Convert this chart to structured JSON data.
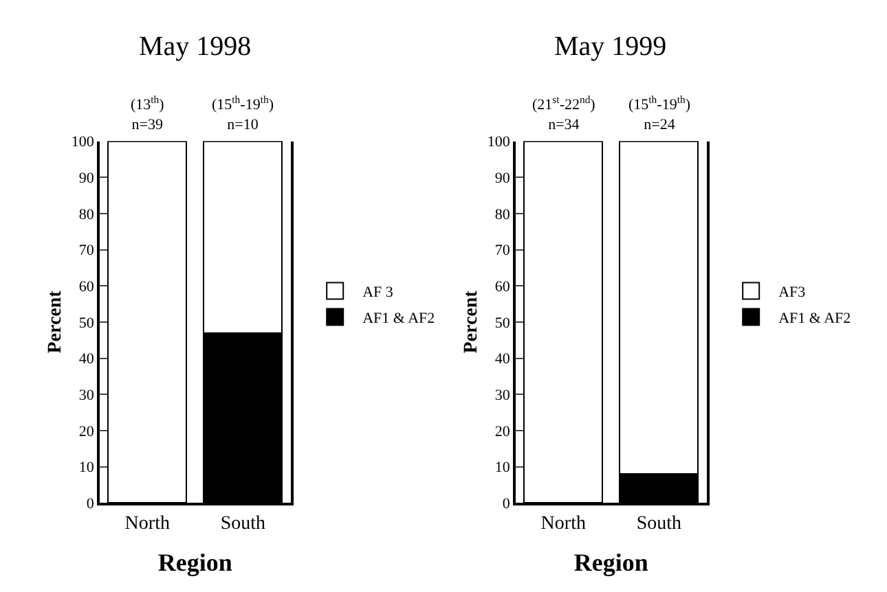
{
  "chart_data": [
    {
      "type": "bar",
      "title": "May 1998",
      "xlabel": "Region",
      "ylabel": "Percent",
      "categories": [
        "North",
        "South"
      ],
      "stacked": true,
      "ylim": [
        0,
        100
      ],
      "yticks": [
        0,
        10,
        20,
        30,
        40,
        50,
        60,
        70,
        80,
        90,
        100
      ],
      "legend": "right",
      "series": [
        {
          "name": "AF1 & AF2",
          "color": "#000000",
          "values": [
            0,
            47
          ]
        },
        {
          "name": "AF 3",
          "color": "#ffffff",
          "values": [
            100,
            53
          ]
        }
      ],
      "annotations": [
        {
          "text": "(13$^{th}$)\nn=39",
          "x": "North",
          "y": 100
        },
        {
          "text": "(15$^{th}$-19$^{th}$)\nn=10",
          "x": "South",
          "y": 100
        }
      ]
    },
    {
      "type": "bar",
      "title": "May 1999",
      "xlabel": "Region",
      "ylabel": "Percent",
      "categories": [
        "North",
        "South"
      ],
      "stacked": true,
      "ylim": [
        0,
        100
      ],
      "yticks": [
        0,
        10,
        20,
        30,
        40,
        50,
        60,
        70,
        80,
        90,
        100
      ],
      "legend": "right",
      "series": [
        {
          "name": "AF1 & AF2",
          "color": "#000000",
          "values": [
            0,
            8
          ]
        },
        {
          "name": "AF3",
          "color": "#ffffff",
          "values": [
            100,
            92
          ]
        }
      ],
      "annotations": [
        {
          "text": "(21$^{st}$-22$^{nd}$)\nn=34",
          "x": "North",
          "y": 100
        },
        {
          "text": "(15$^{th}$-19$^{th}$)\nn=24",
          "x": "South",
          "y": 100
        }
      ]
    }
  ]
}
